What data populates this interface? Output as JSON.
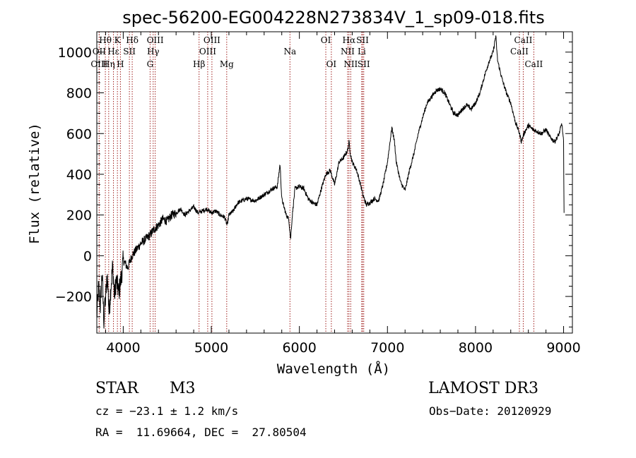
{
  "chart_data": {
    "type": "line",
    "title": "spec-56200-EG004228N273834V_1_sp09-018.fits",
    "xlabel": "Wavelength (Å)",
    "ylabel": "Flux (relative)",
    "xlim": [
      3700,
      9100
    ],
    "ylim": [
      -380,
      1100
    ],
    "x_ticks": [
      "4000",
      "5000",
      "6000",
      "7000",
      "8000",
      "9000"
    ],
    "y_ticks": [
      "−200",
      "0",
      "200",
      "400",
      "600",
      "800",
      "1000"
    ],
    "grid": false,
    "series": [
      {
        "x": [
          3700,
          3720,
          3740,
          3760,
          3780,
          3800,
          3820,
          3840,
          3860,
          3880,
          3900,
          3920,
          3950,
          3980,
          4000,
          4050,
          4100,
          4150,
          4200,
          4250,
          4300,
          4350,
          4400,
          4450,
          4500,
          4550,
          4600,
          4650,
          4700,
          4750,
          4800,
          4850,
          4900,
          4950,
          5000,
          5050,
          5100,
          5150,
          5180,
          5200,
          5250,
          5300,
          5400,
          5500,
          5600,
          5700,
          5750,
          5780,
          5800,
          5850,
          5880,
          5900,
          5920,
          5950,
          6000,
          6050,
          6100,
          6150,
          6200,
          6250,
          6300,
          6350,
          6400,
          6450,
          6500,
          6550,
          6563,
          6580,
          6600,
          6650,
          6700,
          6720,
          6760,
          6800,
          6850,
          6900,
          6950,
          7000,
          7050,
          7080,
          7100,
          7150,
          7200,
          7250,
          7300,
          7350,
          7400,
          7450,
          7500,
          7550,
          7600,
          7650,
          7700,
          7750,
          7800,
          7850,
          7900,
          7950,
          8000,
          8050,
          8100,
          8150,
          8200,
          8230,
          8250,
          8300,
          8350,
          8400,
          8450,
          8500,
          8520,
          8550,
          8600,
          8650,
          8700,
          8750,
          8800,
          8850,
          8900,
          8950,
          8980,
          9000,
          9005
        ],
        "y": [
          -300,
          -150,
          -250,
          -80,
          -320,
          -200,
          -100,
          -280,
          -150,
          -50,
          -200,
          -120,
          -180,
          -100,
          -20,
          -60,
          0,
          30,
          60,
          80,
          100,
          130,
          150,
          180,
          170,
          200,
          210,
          230,
          200,
          220,
          240,
          210,
          220,
          230,
          210,
          220,
          200,
          190,
          150,
          200,
          220,
          260,
          280,
          270,
          300,
          330,
          340,
          450,
          280,
          200,
          180,
          80,
          200,
          330,
          340,
          330,
          280,
          260,
          250,
          330,
          400,
          420,
          350,
          460,
          480,
          520,
          560,
          500,
          460,
          420,
          340,
          300,
          250,
          260,
          280,
          270,
          350,
          460,
          630,
          560,
          460,
          360,
          320,
          420,
          500,
          600,
          680,
          750,
          780,
          810,
          820,
          800,
          750,
          700,
          690,
          720,
          740,
          720,
          750,
          800,
          880,
          950,
          1000,
          1080,
          960,
          870,
          800,
          750,
          660,
          600,
          560,
          600,
          640,
          620,
          610,
          600,
          620,
          580,
          560,
          600,
          650,
          560,
          200
        ]
      }
    ],
    "line_markers": [
      {
        "label": "Hθ",
        "x": 3797,
        "row": 0
      },
      {
        "label": "OII",
        "x": 3727,
        "row": 1
      },
      {
        "label": "OIII",
        "x": 3727,
        "row": 2
      },
      {
        "label": "Hη",
        "x": 3835,
        "row": 2
      },
      {
        "label": "Hε",
        "x": 3889,
        "row": 1
      },
      {
        "label": "K",
        "x": 3934,
        "row": 0
      },
      {
        "label": "H",
        "x": 3968,
        "row": 2
      },
      {
        "label": "SII",
        "x": 4070,
        "row": 1
      },
      {
        "label": "Hδ",
        "x": 4102,
        "row": 0
      },
      {
        "label": "OIII",
        "x": 4363,
        "row": 0
      },
      {
        "label": "Hγ",
        "x": 4340,
        "row": 1
      },
      {
        "label": "G",
        "x": 4305,
        "row": 2
      },
      {
        "label": "Hβ",
        "x": 4861,
        "row": 2
      },
      {
        "label": "OIII",
        "x": 5007,
        "row": 0
      },
      {
        "label": "OIII",
        "x": 4959,
        "row": 1
      },
      {
        "label": "Mg",
        "x": 5175,
        "row": 2
      },
      {
        "label": "Na",
        "x": 5893,
        "row": 1
      },
      {
        "label": "OI",
        "x": 6300,
        "row": 0
      },
      {
        "label": "OI",
        "x": 6363,
        "row": 2
      },
      {
        "label": "Hα",
        "x": 6563,
        "row": 0
      },
      {
        "label": "SII",
        "x": 6717,
        "row": 0
      },
      {
        "label": "NII",
        "x": 6548,
        "row": 1
      },
      {
        "label": "Li",
        "x": 6708,
        "row": 1
      },
      {
        "label": "NII",
        "x": 6583,
        "row": 2
      },
      {
        "label": "SII",
        "x": 6731,
        "row": 2
      },
      {
        "label": "CaII",
        "x": 8542,
        "row": 0
      },
      {
        "label": "CaII",
        "x": 8498,
        "row": 1
      },
      {
        "label": "CaII",
        "x": 8662,
        "row": 2
      }
    ],
    "marker_color": "#a0201e"
  },
  "info": {
    "class_label": "STAR",
    "subclass": "M3",
    "survey": "LAMOST DR3",
    "redshift": "cz = −23.1 ± 1.2 km/s",
    "obs_date": "Obs−Date: 20120929",
    "coords": "RA =  11.69664, DEC =  27.80504"
  }
}
